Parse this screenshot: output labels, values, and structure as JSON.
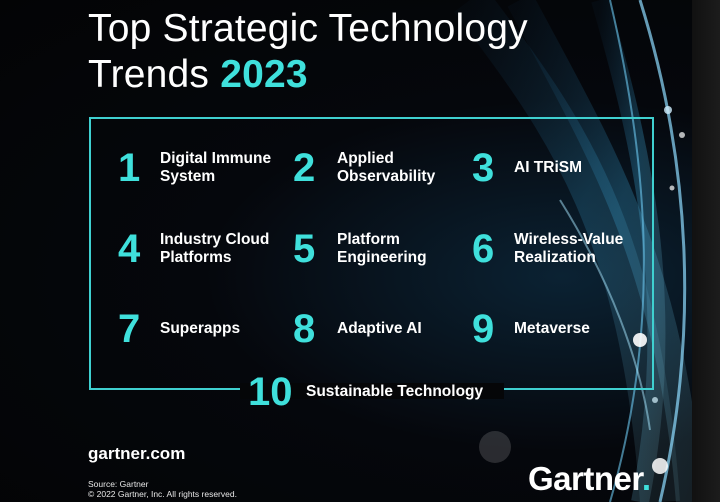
{
  "header": {
    "title_line1": "Top Strategic Technology",
    "title_line2_prefix": "Trends",
    "title_year": "2023"
  },
  "trends": [
    {
      "number": "1",
      "line1": "Digital Immune",
      "line2": "System"
    },
    {
      "number": "2",
      "line1": "Applied",
      "line2": "Observability"
    },
    {
      "number": "3",
      "line1": "AI TRiSM",
      "line2": ""
    },
    {
      "number": "4",
      "line1": "Industry Cloud",
      "line2": "Platforms"
    },
    {
      "number": "5",
      "line1": "Platform",
      "line2": "Engineering"
    },
    {
      "number": "6",
      "line1": "Wireless-Value",
      "line2": "Realization"
    },
    {
      "number": "7",
      "line1": "Superapps",
      "line2": ""
    },
    {
      "number": "8",
      "line1": "Adaptive AI",
      "line2": ""
    },
    {
      "number": "9",
      "line1": "Metaverse",
      "line2": ""
    },
    {
      "number": "10",
      "line1": "Sustainable Technology",
      "line2": ""
    }
  ],
  "footer": {
    "url": "gartner.com",
    "source": "Source: Gartner",
    "copyright": "© 2022 Gartner, Inc. All rights reserved.",
    "logo_text": "Gartner",
    "logo_dot": "."
  },
  "colors": {
    "accent": "#3fe0dc",
    "background": "#05070c",
    "text": "#ffffff"
  }
}
